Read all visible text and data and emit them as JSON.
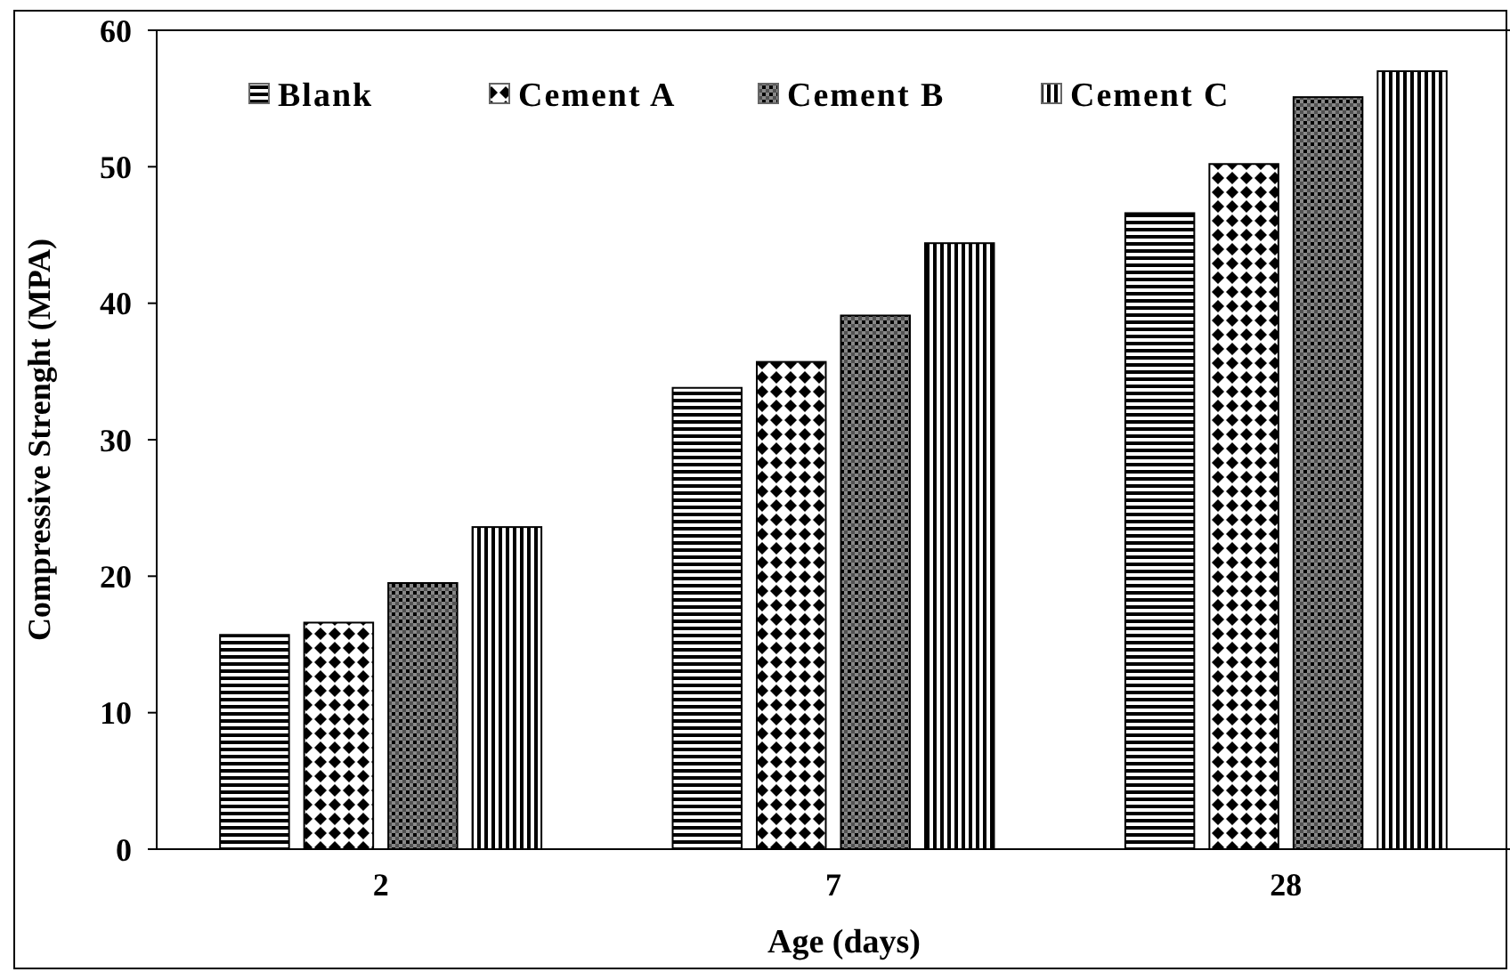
{
  "chart_data": {
    "type": "bar",
    "xlabel": "Age (days)",
    "ylabel": "Compressive Strenght (MPA)",
    "categories": [
      "2",
      "7",
      "28"
    ],
    "series": [
      {
        "name": "Blank",
        "color": "#000000",
        "values": [
          15.7,
          33.8,
          46.6
        ]
      },
      {
        "name": "Cement A",
        "color": "#000000",
        "values": [
          16.6,
          35.7,
          50.2
        ]
      },
      {
        "name": "Cement B",
        "color": "#000000",
        "values": [
          19.5,
          39.1,
          55.1
        ]
      },
      {
        "name": "Cement C",
        "color": "#000000",
        "values": [
          23.6,
          44.4,
          57.0
        ]
      }
    ],
    "ylim": [
      0,
      60
    ],
    "yticks": [
      0,
      10,
      20,
      30,
      40,
      50,
      60
    ],
    "grid": false,
    "legend": "top"
  }
}
